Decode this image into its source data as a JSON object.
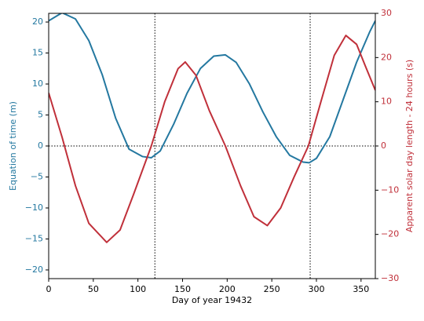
{
  "chart_data": {
    "type": "line",
    "xlabel": "Day of year 19432",
    "ylabel": "Equation of time (m)",
    "y2label": "Apparent solar day length - 24 hours (s)",
    "xlim": [
      0,
      366
    ],
    "xticks": [
      0,
      50,
      100,
      150,
      200,
      250,
      300,
      350
    ],
    "ylim": [
      -21.4,
      21.4
    ],
    "yticks": [
      {
        "value": -20,
        "label": "−20"
      },
      {
        "value": -15,
        "label": "−15"
      },
      {
        "value": -10,
        "label": "−10"
      },
      {
        "value": -5,
        "label": "−5"
      },
      0,
      5,
      10,
      15,
      20
    ],
    "y2lim": [
      -30,
      30
    ],
    "y2ticks": [
      {
        "value": -30,
        "label": "−30"
      },
      {
        "value": -20,
        "label": "−20"
      },
      {
        "value": -10,
        "label": "−10"
      },
      0,
      10,
      20,
      30
    ],
    "vlines": [
      119,
      293
    ],
    "hlines": [
      0
    ],
    "series": [
      {
        "name": "Equation of time (m)",
        "color": "#2478a0",
        "axis": "y",
        "x": [
          0,
          15,
          30,
          45,
          60,
          75,
          90,
          105,
          115,
          125,
          140,
          155,
          170,
          185,
          198,
          210,
          225,
          240,
          255,
          270,
          285,
          292,
          300,
          315,
          330,
          345,
          360,
          366
        ],
        "values": [
          20.2,
          21.5,
          20.5,
          17,
          11.5,
          4.5,
          -0.5,
          -1.7,
          -1.9,
          -0.8,
          3.5,
          8.5,
          12.5,
          14.5,
          14.7,
          13.5,
          10,
          5.5,
          1.5,
          -1.5,
          -2.6,
          -2.7,
          -2,
          1.5,
          7.5,
          13.5,
          18.5,
          20.2
        ]
      },
      {
        "name": "Apparent solar day length - 24 hours (s)",
        "color": "#c0303a",
        "axis": "y2",
        "x": [
          0,
          15,
          30,
          45,
          65,
          80,
          95,
          115,
          130,
          145,
          153,
          165,
          180,
          198,
          215,
          230,
          245,
          260,
          275,
          291,
          305,
          320,
          333,
          345,
          355,
          366
        ],
        "values": [
          12,
          2,
          -9,
          -17.5,
          -21.8,
          -19,
          -11,
          0,
          10,
          17.5,
          19,
          16,
          8,
          0,
          -9,
          -16,
          -18,
          -14,
          -7,
          0,
          10,
          20.5,
          25,
          23,
          18,
          12.6
        ]
      }
    ]
  }
}
